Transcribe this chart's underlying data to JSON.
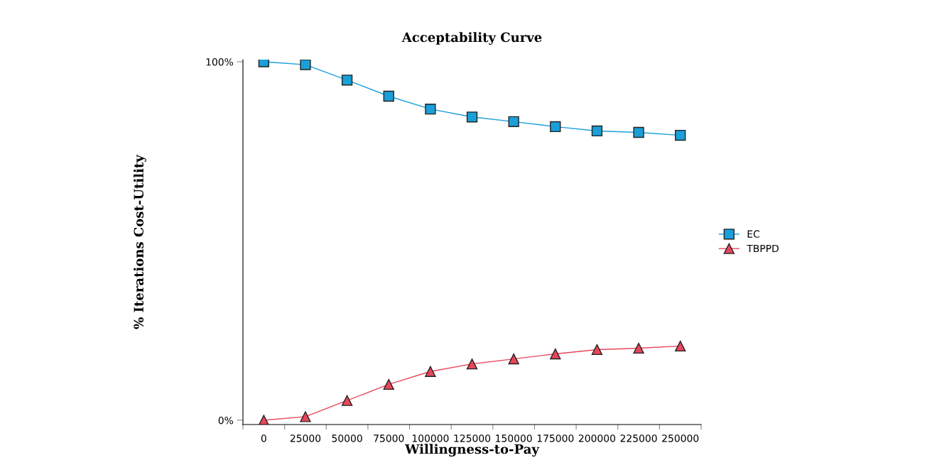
{
  "chart_data": {
    "type": "line",
    "title": "Acceptability Curve",
    "xlabel": "Willingness-to-Pay",
    "ylabel": "% Iterations Cost-Utility",
    "x": [
      0,
      25000,
      50000,
      75000,
      100000,
      125000,
      150000,
      175000,
      200000,
      225000,
      250000
    ],
    "series": [
      {
        "name": "EC",
        "color": "#1a9fd8",
        "marker": "square",
        "values": [
          100,
          99.2,
          94.9,
          90.4,
          86.8,
          84.6,
          83.3,
          81.9,
          80.7,
          80.3,
          79.5
        ]
      },
      {
        "name": "TBPPD",
        "color": "#e8465a",
        "marker": "triangle",
        "values": [
          0,
          1.0,
          5.5,
          10.0,
          13.6,
          15.7,
          17.1,
          18.5,
          19.7,
          20.1,
          20.7
        ]
      }
    ],
    "xlim": [
      -12500,
      262500
    ],
    "xticks": [
      {
        "value": -12500,
        "label": null
      },
      0,
      {
        "value": 12500,
        "label": null
      },
      25000,
      {
        "value": 37500,
        "label": null
      },
      50000,
      {
        "value": 62500,
        "label": null
      },
      75000,
      {
        "value": 87500,
        "label": null
      },
      100000,
      {
        "value": 112500,
        "label": null
      },
      125000,
      {
        "value": 137500,
        "label": null
      },
      150000,
      {
        "value": 162500,
        "label": null
      },
      175000,
      {
        "value": 187500,
        "label": null
      },
      200000,
      {
        "value": 212500,
        "label": null
      },
      225000,
      {
        "value": 237500,
        "label": null
      },
      250000,
      {
        "value": 262500,
        "label": null
      }
    ],
    "ylim": [
      -1.2,
      100.6
    ],
    "yticks": [
      {
        "value": 0,
        "label": "0%"
      },
      {
        "value": 100,
        "label": "100%"
      }
    ],
    "grid": false,
    "legend": "right",
    "line_style": "solid"
  }
}
